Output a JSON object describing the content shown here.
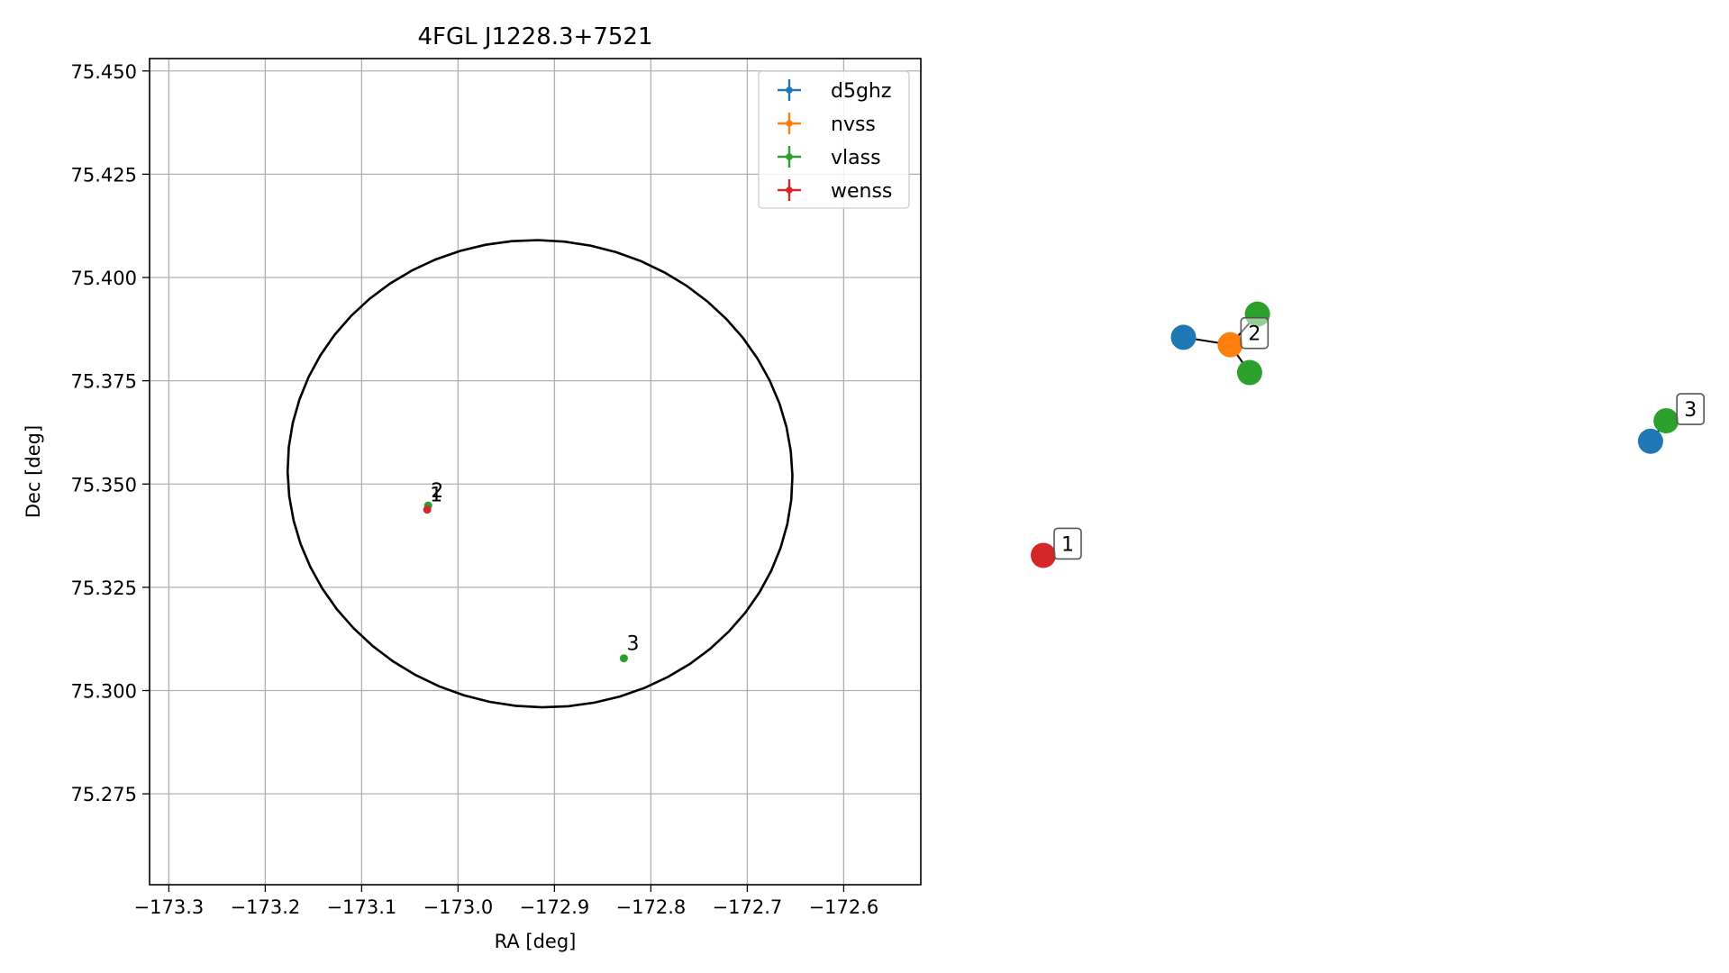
{
  "chart_data": [
    {
      "type": "scatter",
      "title": "4FGL J1228.3+7521",
      "xlabel": "RA [deg]",
      "ylabel": "Dec [deg]",
      "xlim": [
        -173.32,
        -172.52
      ],
      "ylim": [
        75.253,
        75.453
      ],
      "xticks": [
        -173.3,
        -173.2,
        -173.1,
        -173.0,
        -172.9,
        -172.8,
        -172.7,
        -172.6
      ],
      "xtick_labels": [
        "−173.3",
        "−173.2",
        "−173.1",
        "−173.0",
        "−172.9",
        "−172.8",
        "−172.7",
        "−172.6"
      ],
      "yticks": [
        75.275,
        75.3,
        75.325,
        75.35,
        75.375,
        75.4,
        75.425,
        75.45
      ],
      "ytick_labels": [
        "75.275",
        "75.300",
        "75.325",
        "75.350",
        "75.375",
        "75.400",
        "75.425",
        "75.450"
      ],
      "grid": true,
      "legend_position": "top-right",
      "colors": {
        "d5ghz": "#1f77b4",
        "nvss": "#ff7f0e",
        "vlass": "#2ca02c",
        "wenss": "#d62728",
        "ellipse": "#000000",
        "grid": "#b0b0b0"
      },
      "ellipse": {
        "center_ra": -172.915,
        "center_dec": 75.3525,
        "semi_ra": 0.262,
        "semi_dec": 0.0565,
        "tilt_deg": 6
      },
      "series": [
        {
          "name": "d5ghz",
          "points": []
        },
        {
          "name": "nvss",
          "points": []
        },
        {
          "name": "vlass",
          "points": [
            {
              "ra": -173.031,
              "dec": 75.3448,
              "label": "2"
            },
            {
              "ra": -172.828,
              "dec": 75.3078,
              "label": "3"
            }
          ]
        },
        {
          "name": "wenss",
          "points": [
            {
              "ra": -173.032,
              "dec": 75.3438,
              "label": "1"
            }
          ]
        }
      ],
      "labels_overlap_text": "1"
    },
    {
      "type": "network",
      "nodes": [
        {
          "id": "wenss-1",
          "catalog": "wenss",
          "x": 0.0,
          "y": -1.15
        },
        {
          "id": "d5ghz-2",
          "catalog": "d5ghz",
          "x": 0.36,
          "y": 1.2
        },
        {
          "id": "nvss-2",
          "catalog": "nvss",
          "x": 0.48,
          "y": 1.12
        },
        {
          "id": "vlass-2a",
          "catalog": "vlass",
          "x": 0.55,
          "y": 1.45
        },
        {
          "id": "vlass-2b",
          "catalog": "vlass",
          "x": 0.53,
          "y": 0.82
        },
        {
          "id": "d5ghz-3",
          "catalog": "d5ghz",
          "x": 1.56,
          "y": 0.08
        },
        {
          "id": "vlass-3",
          "catalog": "vlass",
          "x": 1.6,
          "y": 0.3
        }
      ],
      "edges": [
        [
          "d5ghz-2",
          "nvss-2"
        ],
        [
          "nvss-2",
          "vlass-2a"
        ],
        [
          "nvss-2",
          "vlass-2b"
        ],
        [
          "d5ghz-3",
          "vlass-3"
        ]
      ],
      "group_labels": [
        {
          "text": "1",
          "node": "wenss-1"
        },
        {
          "text": "2",
          "node": "nvss-2"
        },
        {
          "text": "3",
          "node": "vlass-3"
        }
      ]
    }
  ]
}
